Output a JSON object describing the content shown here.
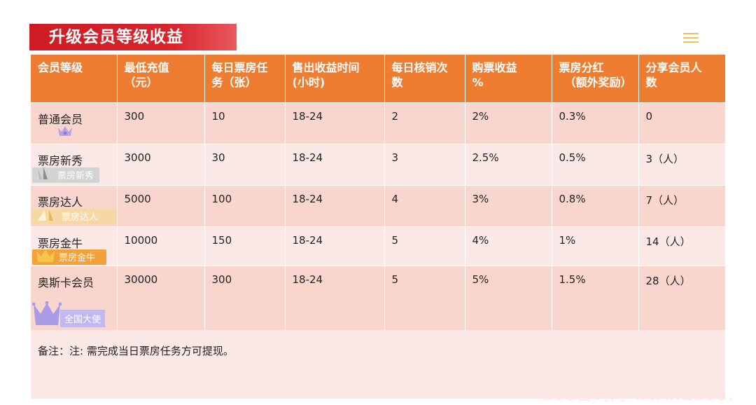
{
  "title": "升级会员等级收益",
  "headers": [
    [
      "会员等级"
    ],
    [
      "最低充值",
      "（元）"
    ],
    [
      "每日票房任",
      "务（张）"
    ],
    [
      "售出收益时间",
      "(小时)"
    ],
    [
      "每日核销次",
      "数"
    ],
    [
      "购票收益",
      "%"
    ],
    [
      "票房分红",
      "（额外奖励）"
    ],
    [
      "分享会员人",
      "数"
    ]
  ],
  "rows": [
    {
      "level": "普通会员",
      "badge": "",
      "min_recharge": "300",
      "daily_task": "10",
      "sale_hours": "18-24",
      "daily_checks": "2",
      "ticket_income": "2%",
      "dividend": "0.3%",
      "share_members": "0"
    },
    {
      "level": "票房新秀",
      "badge": "票房新秀",
      "min_recharge": "3000",
      "daily_task": "30",
      "sale_hours": "18-24",
      "daily_checks": "3",
      "ticket_income": "2.5%",
      "dividend": "0.5%",
      "share_members": "3（人）"
    },
    {
      "level": "票房达人",
      "badge": "票房达人",
      "min_recharge": "5000",
      "daily_task": "100",
      "sale_hours": "18-24",
      "daily_checks": "4",
      "ticket_income": "3%",
      "dividend": "0.8%",
      "share_members": "7（人）"
    },
    {
      "level": "票房金牛",
      "badge": "票房金牛",
      "min_recharge": "10000",
      "daily_task": "150",
      "sale_hours": "18-24",
      "daily_checks": "5",
      "ticket_income": "4%",
      "dividend": "1%",
      "share_members": "14（人）"
    },
    {
      "level": "奥斯卡会员",
      "badge": "全国大使",
      "min_recharge": "30000",
      "daily_task": "300",
      "sale_hours": "18-24",
      "daily_checks": "5",
      "ticket_income": "5%",
      "dividend": "1.5%",
      "share_members": "28（人）"
    }
  ],
  "note": "备注：注: 需完成当日票房任务方可提现。",
  "watermark": "318首码网 www.E318.",
  "colors": {
    "title_bg": "#d8262d",
    "header_bg": "#ee7d31",
    "row_odd": "#f8d5cd",
    "row_even": "#fbe9e7",
    "menu_icon": "#e9c35d"
  },
  "icons": [
    "menu-icon",
    "crown-icon"
  ]
}
